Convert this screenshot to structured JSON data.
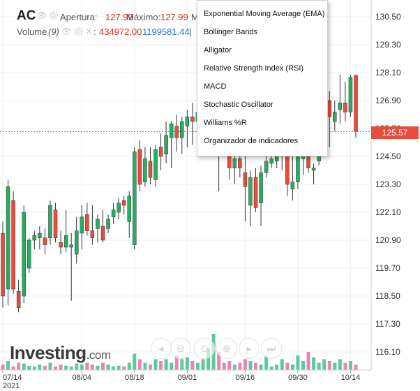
{
  "header": {
    "symbol": "AC",
    "open_label": "Apertura:",
    "open_value": "127.99",
    "high_label": "Máximo:",
    "high_value": "127.99",
    "cut_label": "M",
    "volume_label": "Volume",
    "volume_period": "(9)",
    "volume_value": "434972.00",
    "volume_avg": "1199581.44"
  },
  "indicator_menu": {
    "items": [
      "Exponential Moving Average (EMA)",
      "Bollinger Bands",
      "Alligator",
      "Relative Strength Index (RSI)",
      "MACD",
      "Stochastic Oscillator",
      "Williams %R",
      "Organizador de indicadores"
    ]
  },
  "last_price_tag": "125.57",
  "logo": {
    "text": "Investing",
    "suffix": ".com"
  },
  "colors": {
    "up": "#27ae60",
    "down": "#e74c3c",
    "volume_up": "#3fbf8f",
    "volume_down": "#e86ea9"
  },
  "chart_data": {
    "type": "candlestick",
    "y_ticks": [
      "130.50",
      "129.30",
      "128.10",
      "126.90",
      "125.70",
      "124.50",
      "123.30",
      "122.10",
      "120.90",
      "119.70",
      "118.50",
      "117.30",
      "116.10"
    ],
    "ylim": [
      115.7,
      131.0
    ],
    "x_ticks": [
      {
        "label": "07/14",
        "sub": "2021",
        "index": 0
      },
      {
        "label": "08/04",
        "index": 15
      },
      {
        "label": "08/18",
        "index": 25
      },
      {
        "label": "09/01",
        "index": 35
      },
      {
        "label": "09/16",
        "index": 46
      },
      {
        "label": "09/30",
        "index": 56
      },
      {
        "label": "10/14",
        "index": 66
      }
    ],
    "candles": [
      {
        "o": 121.2,
        "h": 121.7,
        "l": 118.0,
        "c": 118.5
      },
      {
        "o": 118.8,
        "h": 123.5,
        "l": 118.1,
        "c": 123.2
      },
      {
        "o": 122.6,
        "h": 123.0,
        "l": 118.6,
        "c": 118.8
      },
      {
        "o": 118.7,
        "h": 119.2,
        "l": 117.8,
        "c": 118.0
      },
      {
        "o": 118.5,
        "h": 122.4,
        "l": 118.2,
        "c": 122.1
      },
      {
        "o": 119.7,
        "h": 121.0,
        "l": 119.5,
        "c": 120.9
      },
      {
        "o": 120.9,
        "h": 121.3,
        "l": 120.5,
        "c": 121.1
      },
      {
        "o": 121.0,
        "h": 121.5,
        "l": 120.5,
        "c": 121.2
      },
      {
        "o": 121.0,
        "h": 121.4,
        "l": 120.3,
        "c": 120.7
      },
      {
        "o": 121.0,
        "h": 122.6,
        "l": 120.7,
        "c": 122.4
      },
      {
        "o": 122.2,
        "h": 122.5,
        "l": 120.8,
        "c": 121.0
      },
      {
        "o": 120.8,
        "h": 121.3,
        "l": 120.3,
        "c": 120.6
      },
      {
        "o": 120.6,
        "h": 122.2,
        "l": 120.4,
        "c": 121.1
      },
      {
        "o": 120.6,
        "h": 121.2,
        "l": 118.3,
        "c": 120.7
      },
      {
        "o": 120.3,
        "h": 121.9,
        "l": 119.9,
        "c": 121.3
      },
      {
        "o": 121.2,
        "h": 122.4,
        "l": 120.5,
        "c": 121.9
      },
      {
        "o": 122.0,
        "h": 122.5,
        "l": 121.1,
        "c": 121.3
      },
      {
        "o": 121.3,
        "h": 122.4,
        "l": 120.7,
        "c": 121.0
      },
      {
        "o": 121.4,
        "h": 122.0,
        "l": 120.8,
        "c": 121.8
      },
      {
        "o": 121.5,
        "h": 122.2,
        "l": 120.8,
        "c": 120.9
      },
      {
        "o": 121.4,
        "h": 122.0,
        "l": 121.2,
        "c": 121.8
      },
      {
        "o": 121.9,
        "h": 122.5,
        "l": 121.6,
        "c": 122.2
      },
      {
        "o": 122.1,
        "h": 122.7,
        "l": 121.8,
        "c": 122.5
      },
      {
        "o": 122.6,
        "h": 122.8,
        "l": 122.0,
        "c": 122.4
      },
      {
        "o": 121.7,
        "h": 123.0,
        "l": 121.0,
        "c": 122.8
      },
      {
        "o": 120.7,
        "h": 124.9,
        "l": 120.5,
        "c": 124.7
      },
      {
        "o": 124.8,
        "h": 125.2,
        "l": 123.0,
        "c": 123.3
      },
      {
        "o": 123.4,
        "h": 124.9,
        "l": 123.2,
        "c": 124.4
      },
      {
        "o": 124.3,
        "h": 124.9,
        "l": 123.3,
        "c": 123.6
      },
      {
        "o": 123.5,
        "h": 125.0,
        "l": 123.2,
        "c": 124.8
      },
      {
        "o": 124.9,
        "h": 125.5,
        "l": 123.9,
        "c": 124.5
      },
      {
        "o": 124.6,
        "h": 126.0,
        "l": 124.2,
        "c": 125.4
      },
      {
        "o": 125.3,
        "h": 126.0,
        "l": 124.0,
        "c": 125.9
      },
      {
        "o": 125.8,
        "h": 126.3,
        "l": 124.7,
        "c": 125.3
      },
      {
        "o": 125.3,
        "h": 126.2,
        "l": 124.6,
        "c": 126.0
      },
      {
        "o": 125.8,
        "h": 126.5,
        "l": 124.9,
        "c": 126.2
      },
      {
        "o": 126.2,
        "h": 126.8,
        "l": 125.0,
        "c": 126.0
      },
      {
        "o": 126.0,
        "h": 126.7,
        "l": 124.9,
        "c": 126.4
      },
      {
        "o": 125.4,
        "h": 126.7,
        "l": 125.0,
        "c": 126.6
      },
      {
        "o": 126.4,
        "h": 129.5,
        "l": 126.2,
        "c": 127.7
      },
      {
        "o": 127.5,
        "h": 129.9,
        "l": 126.5,
        "c": 129.0
      },
      {
        "o": 129.0,
        "h": 130.2,
        "l": 123.0,
        "c": 127.4
      },
      {
        "o": 127.3,
        "h": 127.9,
        "l": 124.5,
        "c": 124.8
      },
      {
        "o": 124.7,
        "h": 125.4,
        "l": 123.5,
        "c": 124.0
      },
      {
        "o": 124.0,
        "h": 124.5,
        "l": 123.3,
        "c": 124.4
      },
      {
        "o": 124.4,
        "h": 124.9,
        "l": 123.6,
        "c": 124.0
      },
      {
        "o": 123.8,
        "h": 124.7,
        "l": 121.7,
        "c": 123.2
      },
      {
        "o": 122.4,
        "h": 123.9,
        "l": 121.5,
        "c": 123.6
      },
      {
        "o": 123.6,
        "h": 124.0,
        "l": 122.1,
        "c": 122.3
      },
      {
        "o": 122.5,
        "h": 124.1,
        "l": 121.5,
        "c": 123.8
      },
      {
        "o": 123.8,
        "h": 124.5,
        "l": 123.6,
        "c": 124.3
      },
      {
        "o": 124.2,
        "h": 124.7,
        "l": 124.0,
        "c": 124.4
      },
      {
        "o": 124.3,
        "h": 124.9,
        "l": 124.0,
        "c": 124.7
      },
      {
        "o": 124.5,
        "h": 125.4,
        "l": 123.9,
        "c": 124.8
      },
      {
        "o": 124.8,
        "h": 125.8,
        "l": 122.8,
        "c": 123.3
      },
      {
        "o": 123.1,
        "h": 124.7,
        "l": 122.6,
        "c": 123.4
      },
      {
        "o": 123.4,
        "h": 124.8,
        "l": 123.1,
        "c": 124.6
      },
      {
        "o": 124.4,
        "h": 125.0,
        "l": 123.7,
        "c": 124.8
      },
      {
        "o": 124.6,
        "h": 124.9,
        "l": 123.8,
        "c": 124.0
      },
      {
        "o": 123.9,
        "h": 124.2,
        "l": 123.3,
        "c": 124.0
      },
      {
        "o": 124.3,
        "h": 124.9,
        "l": 124.1,
        "c": 124.6
      },
      {
        "o": 126.3,
        "h": 127.5,
        "l": 125.8,
        "c": 126.9
      },
      {
        "o": 126.9,
        "h": 127.3,
        "l": 124.9,
        "c": 126.2
      },
      {
        "o": 126.0,
        "h": 126.9,
        "l": 125.6,
        "c": 126.4
      },
      {
        "o": 126.5,
        "h": 128.0,
        "l": 125.9,
        "c": 126.8
      },
      {
        "o": 126.8,
        "h": 127.7,
        "l": 126.0,
        "c": 126.4
      },
      {
        "o": 126.4,
        "h": 128.0,
        "l": 126.2,
        "c": 127.9
      },
      {
        "o": 127.99,
        "h": 127.99,
        "l": 125.3,
        "c": 125.57
      }
    ],
    "volumes": [
      0.15,
      0.25,
      0.1,
      0.2,
      0.18,
      0.12,
      0.1,
      0.15,
      0.12,
      0.2,
      0.1,
      0.15,
      0.12,
      0.1,
      0.18,
      0.15,
      0.2,
      0.15,
      0.12,
      0.2,
      0.15,
      0.1,
      0.12,
      0.1,
      0.2,
      0.45,
      0.3,
      0.2,
      0.15,
      0.3,
      0.25,
      0.3,
      0.2,
      0.4,
      0.3,
      0.35,
      0.25,
      0.2,
      0.3,
      0.6,
      1.0,
      0.5,
      0.2,
      0.25,
      0.15,
      0.2,
      0.3,
      0.25,
      0.2,
      0.15,
      0.4,
      0.1,
      0.15,
      0.3,
      0.2,
      0.15,
      0.4,
      0.25,
      0.5,
      0.35,
      0.2,
      0.3,
      0.25,
      0.2,
      0.3,
      0.2,
      0.25,
      0.15
    ]
  }
}
